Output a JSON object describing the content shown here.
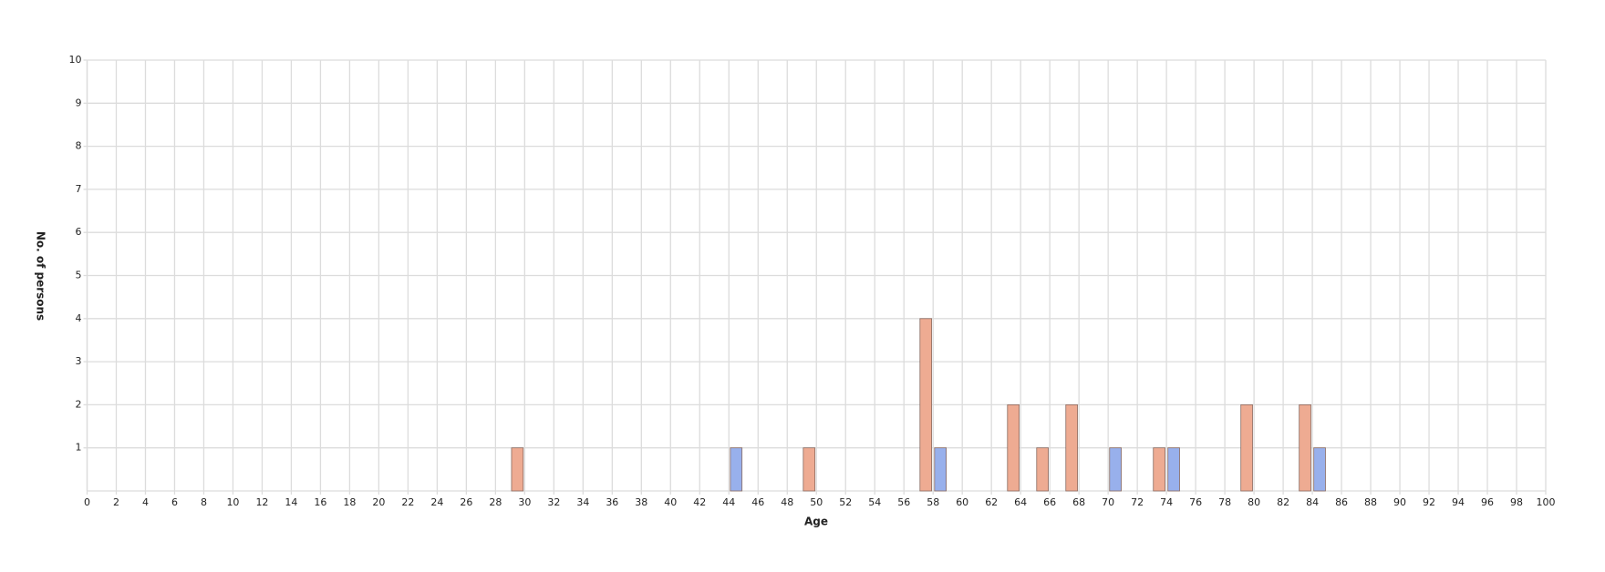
{
  "chart_data": {
    "type": "bar",
    "x_label": "Age",
    "y_label": "No. of persons",
    "series": [
      {
        "color": "#eeab92",
        "x": [
          29,
          49,
          57,
          63,
          65,
          67,
          73,
          79,
          83
        ],
        "values": [
          1,
          1,
          4,
          2,
          1,
          2,
          1,
          2,
          2
        ]
      },
      {
        "color": "#98b0ec",
        "x": [
          44,
          58,
          70,
          74,
          84
        ],
        "values": [
          1,
          1,
          1,
          1,
          1
        ]
      }
    ],
    "xlim": [
      0,
      100
    ],
    "xticks": [
      0,
      2,
      4,
      6,
      8,
      10,
      12,
      14,
      16,
      18,
      20,
      22,
      24,
      26,
      28,
      30,
      32,
      34,
      36,
      38,
      40,
      42,
      44,
      46,
      48,
      50,
      52,
      54,
      56,
      58,
      60,
      62,
      64,
      66,
      68,
      70,
      72,
      74,
      76,
      78,
      80,
      82,
      84,
      86,
      88,
      90,
      92,
      94,
      96,
      98,
      100
    ],
    "ylim": [
      0,
      10
    ],
    "yticks": [
      1,
      2,
      3,
      4,
      5,
      6,
      7,
      8,
      9,
      10
    ],
    "grid": true
  }
}
